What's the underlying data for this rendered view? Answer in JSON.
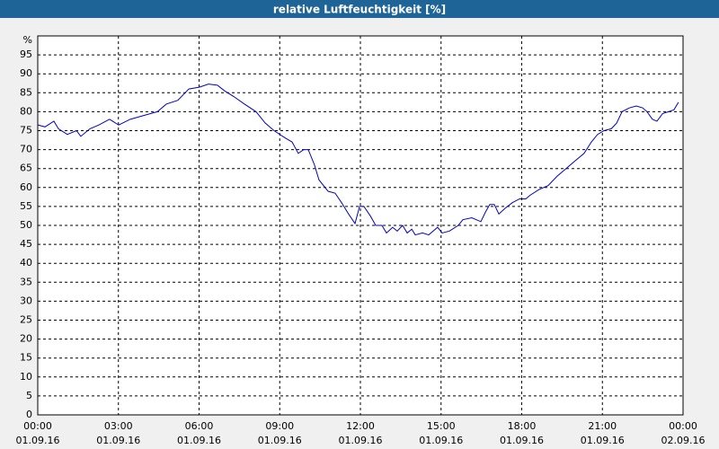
{
  "chart_data": {
    "type": "line",
    "title": "relative Luftfeuchtigkeit [%]",
    "y_unit": "%",
    "xlim": [
      0,
      24
    ],
    "xticks": [
      {
        "value": 0,
        "label": [
          "00:00",
          "01.09.16"
        ]
      },
      {
        "value": 3,
        "label": [
          "03:00",
          "01.09.16"
        ]
      },
      {
        "value": 6,
        "label": [
          "06:00",
          "01.09.16"
        ]
      },
      {
        "value": 9,
        "label": [
          "09:00",
          "01.09.16"
        ]
      },
      {
        "value": 12,
        "label": [
          "12:00",
          "01.09.16"
        ]
      },
      {
        "value": 15,
        "label": [
          "15:00",
          "01.09.16"
        ]
      },
      {
        "value": 18,
        "label": [
          "18:00",
          "01.09.16"
        ]
      },
      {
        "value": 21,
        "label": [
          "21:00",
          "01.09.16"
        ]
      },
      {
        "value": 24,
        "label": [
          "00:00",
          "02.09.16"
        ]
      }
    ],
    "ylim": [
      0,
      100
    ],
    "yticks": [
      0,
      5,
      10,
      15,
      20,
      25,
      30,
      35,
      40,
      45,
      50,
      55,
      60,
      65,
      70,
      75,
      80,
      85,
      90,
      95
    ],
    "grid": true,
    "x": [
      0,
      0.27,
      0.6,
      0.77,
      1.1,
      1.44,
      1.6,
      1.94,
      2.27,
      2.67,
      3.01,
      3.44,
      3.94,
      4.45,
      4.78,
      5.21,
      5.62,
      6.02,
      6.35,
      6.68,
      6.95,
      7.29,
      7.69,
      8.12,
      8.46,
      8.79,
      9.22,
      9.46,
      9.69,
      9.89,
      10.06,
      10.29,
      10.46,
      10.8,
      11.06,
      11.3,
      11.56,
      11.8,
      11.97,
      12.13,
      12.37,
      12.57,
      12.8,
      12.97,
      13.2,
      13.37,
      13.57,
      13.74,
      13.91,
      14.04,
      14.31,
      14.54,
      14.87,
      15.04,
      15.31,
      15.64,
      15.81,
      16.14,
      16.48,
      16.65,
      16.81,
      16.98,
      17.15,
      17.38,
      17.65,
      17.92,
      18.15,
      18.32,
      18.65,
      18.98,
      19.32,
      19.65,
      19.98,
      20.32,
      20.59,
      20.82,
      21.06,
      21.33,
      21.53,
      21.73,
      22,
      22.26,
      22.5,
      22.66,
      22.86,
      23.03,
      23.24,
      23.46,
      23.66,
      23.83
    ],
    "series": [
      {
        "color": "#0000c8",
        "values": [
          76.5,
          76,
          77.5,
          75.5,
          74,
          75,
          73.5,
          75.5,
          76.5,
          78,
          76.5,
          78,
          79,
          80,
          82,
          83,
          86,
          86.5,
          87.3,
          87,
          85.5,
          84,
          82,
          80,
          77,
          75,
          73,
          72,
          69,
          70,
          70,
          66,
          62,
          59,
          58.5,
          56,
          53,
          50.5,
          55,
          55,
          52.5,
          50,
          50,
          48,
          49.5,
          48.5,
          50,
          48,
          49,
          47.5,
          48,
          47.5,
          49.5,
          48,
          48.5,
          50,
          51.5,
          52,
          51,
          53.5,
          55.5,
          55.5,
          53,
          54.5,
          56,
          57,
          57,
          58,
          59.5,
          60.5,
          63,
          65,
          67,
          69,
          72,
          74,
          75,
          75.5,
          77,
          80,
          81,
          81.5,
          81,
          80,
          78,
          77.5,
          79.5,
          80,
          80.5,
          82.5
        ]
      }
    ]
  }
}
